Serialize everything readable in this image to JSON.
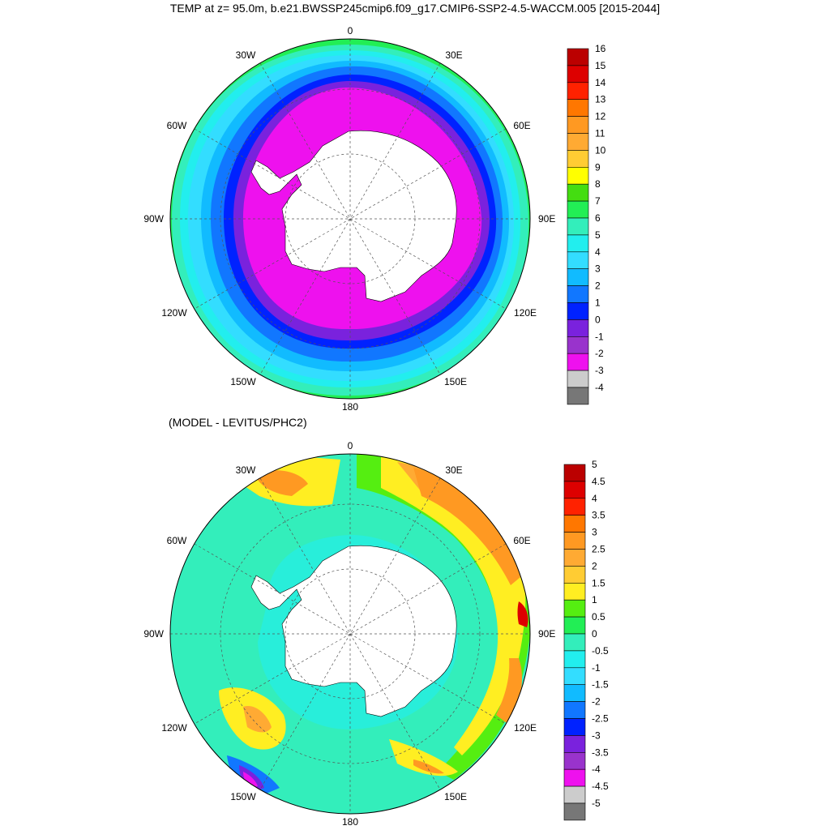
{
  "title": "TEMP at z=  95.0m, b.e21.BWSSP245cmip6.f09_g17.CMIP6-SSP2-4.5-WACCM.005 [2015-2044]",
  "subtitle": "(MODEL - LEVITUS/PHC2)",
  "meridian_labels": [
    "0",
    "30E",
    "60E",
    "90E",
    "120E",
    "150E",
    "180",
    "150W",
    "120W",
    "90W",
    "60W",
    "30W"
  ],
  "top_map": {
    "colorbar_labels": [
      "16",
      "15",
      "14",
      "13",
      "12",
      "11",
      "10",
      "9",
      "8",
      "7",
      "6",
      "5",
      "4",
      "3",
      "2",
      "1",
      "0",
      "-1",
      "-2",
      "-3",
      "-4"
    ],
    "colors": [
      "#bb0000",
      "#dd0000",
      "#ff2200",
      "#ff7700",
      "#ff9922",
      "#ffaa33",
      "#ffcc33",
      "#ffff00",
      "#44dd11",
      "#22ee55",
      "#33eebb",
      "#22eeee",
      "#33ddff",
      "#11bbff",
      "#1177ff",
      "#0022ff",
      "#7a22dd",
      "#9933cc",
      "#ee11ee",
      "#cccccc",
      "#777777"
    ]
  },
  "bottom_map": {
    "colorbar_labels": [
      "5",
      "4.5",
      "4",
      "3.5",
      "3",
      "2.5",
      "2",
      "1.5",
      "1",
      "0.5",
      "0",
      "-0.5",
      "-1",
      "-1.5",
      "-2",
      "-2.5",
      "-3",
      "-3.5",
      "-4",
      "-4.5",
      "-5"
    ],
    "colors": [
      "#bb0000",
      "#dd0000",
      "#ff2200",
      "#ff7700",
      "#ff9922",
      "#ffaa33",
      "#ffcc33",
      "#ffee22",
      "#55ee11",
      "#22ee55",
      "#33eebb",
      "#22eeee",
      "#33ddff",
      "#11bbff",
      "#1177ff",
      "#0022ff",
      "#7a22dd",
      "#9933cc",
      "#ee11ee",
      "#cccccc",
      "#777777"
    ]
  }
}
